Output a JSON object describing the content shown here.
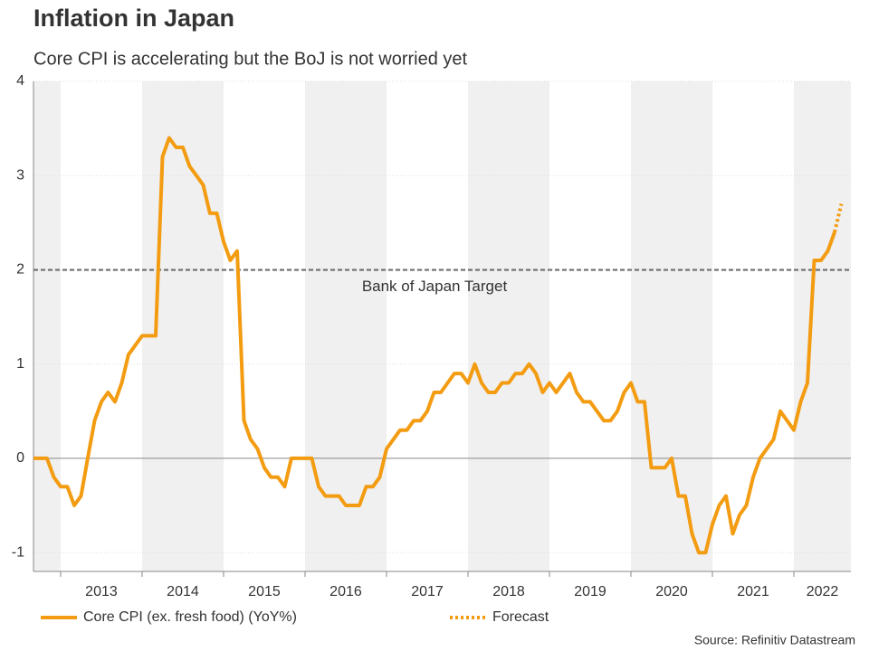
{
  "chart_data": {
    "type": "line",
    "title": "Inflation in Japan",
    "subtitle": "Core CPI is accelerating but the BoJ is not worried yet",
    "source": "Source: Refinitiv Datastream",
    "xlim": [
      2012.667,
      2022.7
    ],
    "xticks": [
      2013,
      2014,
      2015,
      2016,
      2017,
      2018,
      2019,
      2020,
      2021,
      2022
    ],
    "ylim": [
      -1.2,
      4
    ],
    "yticks": [
      -1,
      0,
      1,
      2,
      3,
      4
    ],
    "grid": true,
    "reference_line": {
      "value": 2,
      "label": "Bank of Japan Target"
    },
    "series": [
      {
        "name": "Core CPI (ex. fresh food) (YoY%)",
        "color": "#f39c12",
        "style": "solid",
        "x": [
          2012.667,
          2012.75,
          2012.833,
          2012.917,
          2013,
          2013.083,
          2013.167,
          2013.25,
          2013.333,
          2013.417,
          2013.5,
          2013.583,
          2013.667,
          2013.75,
          2013.833,
          2013.917,
          2014,
          2014.083,
          2014.167,
          2014.25,
          2014.333,
          2014.417,
          2014.5,
          2014.583,
          2014.667,
          2014.75,
          2014.833,
          2014.917,
          2015,
          2015.083,
          2015.167,
          2015.25,
          2015.333,
          2015.417,
          2015.5,
          2015.583,
          2015.667,
          2015.75,
          2015.833,
          2015.917,
          2016,
          2016.083,
          2016.167,
          2016.25,
          2016.333,
          2016.417,
          2016.5,
          2016.583,
          2016.667,
          2016.75,
          2016.833,
          2016.917,
          2017,
          2017.083,
          2017.167,
          2017.25,
          2017.333,
          2017.417,
          2017.5,
          2017.583,
          2017.667,
          2017.75,
          2017.833,
          2017.917,
          2018,
          2018.083,
          2018.167,
          2018.25,
          2018.333,
          2018.417,
          2018.5,
          2018.583,
          2018.667,
          2018.75,
          2018.833,
          2018.917,
          2019,
          2019.083,
          2019.167,
          2019.25,
          2019.333,
          2019.417,
          2019.5,
          2019.583,
          2019.667,
          2019.75,
          2019.833,
          2019.917,
          2020,
          2020.083,
          2020.167,
          2020.25,
          2020.333,
          2020.417,
          2020.5,
          2020.583,
          2020.667,
          2020.75,
          2020.833,
          2020.917,
          2021,
          2021.083,
          2021.167,
          2021.25,
          2021.333,
          2021.417,
          2021.5,
          2021.583,
          2021.667,
          2021.75,
          2021.833,
          2021.917,
          2022,
          2022.083,
          2022.167,
          2022.25,
          2022.333,
          2022.417,
          2022.5
        ],
        "values": [
          0,
          0,
          0,
          -0.2,
          -0.3,
          -0.3,
          -0.5,
          -0.4,
          0,
          0.4,
          0.6,
          0.7,
          0.6,
          0.8,
          1.1,
          1.2,
          1.3,
          1.3,
          1.3,
          3.2,
          3.4,
          3.3,
          3.3,
          3.1,
          3.0,
          2.9,
          2.6,
          2.6,
          2.3,
          2.1,
          2.2,
          0.4,
          0.2,
          0.1,
          -0.1,
          -0.2,
          -0.2,
          -0.3,
          0,
          0,
          0,
          0,
          -0.3,
          -0.4,
          -0.4,
          -0.4,
          -0.5,
          -0.5,
          -0.5,
          -0.3,
          -0.3,
          -0.2,
          0.1,
          0.2,
          0.3,
          0.3,
          0.4,
          0.4,
          0.5,
          0.7,
          0.7,
          0.8,
          0.9,
          0.9,
          0.8,
          1.0,
          0.8,
          0.7,
          0.7,
          0.8,
          0.8,
          0.9,
          0.9,
          1.0,
          0.9,
          0.7,
          0.8,
          0.7,
          0.8,
          0.9,
          0.7,
          0.6,
          0.6,
          0.5,
          0.4,
          0.4,
          0.5,
          0.7,
          0.8,
          0.6,
          0.6,
          -0.1,
          -0.1,
          -0.1,
          0,
          -0.4,
          -0.4,
          -0.8,
          -1.0,
          -1.0,
          -0.7,
          -0.5,
          -0.4,
          -0.8,
          -0.6,
          -0.5,
          -0.2,
          0,
          0.1,
          0.2,
          0.5,
          0.4,
          0.3,
          0.6,
          0.8,
          2.1,
          2.1,
          2.2,
          2.4
        ]
      },
      {
        "name": "Forecast",
        "color": "#f39c12",
        "style": "dotted",
        "x": [
          2022.5,
          2022.583
        ],
        "values": [
          2.4,
          2.7
        ]
      }
    ]
  }
}
